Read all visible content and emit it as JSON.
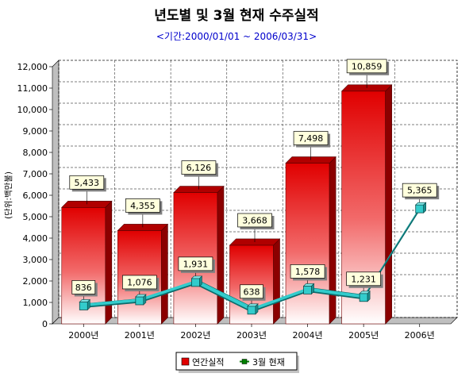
{
  "chart_data": {
    "type": "bar",
    "title": "년도별 및 3월 현재 수주실적",
    "subtitle": "<기간:2000/01/01 ~ 2006/03/31>",
    "ylabel": "(단위:백만불)",
    "xlabel": "",
    "categories": [
      "2000년",
      "2001년",
      "2002년",
      "2003년",
      "2004년",
      "2005년",
      "2006년"
    ],
    "ylim": [
      0,
      12000
    ],
    "yticks": [
      0,
      1000,
      2000,
      3000,
      4000,
      5000,
      6000,
      7000,
      8000,
      9000,
      10000,
      11000,
      12000
    ],
    "ytick_labels": [
      "0",
      "1,000",
      "2,000",
      "3,000",
      "4,000",
      "5,000",
      "6,000",
      "7,000",
      "8,000",
      "9,000",
      "10,000",
      "11,000",
      "12,000"
    ],
    "grid": true,
    "legend_position": "bottom-center",
    "series": [
      {
        "name": "연간실적",
        "kind": "bar",
        "color": "#e00000",
        "values": [
          5433,
          4355,
          6126,
          3668,
          7498,
          10859,
          null
        ],
        "labels": [
          "5,433",
          "4,355",
          "6,126",
          "3,668",
          "7,498",
          "10,859",
          ""
        ]
      },
      {
        "name": "3월 현재",
        "kind": "line",
        "color": "#33cccc",
        "legend_color": "#008000",
        "values": [
          836,
          1076,
          1931,
          638,
          1578,
          1231,
          5365
        ],
        "labels": [
          "836",
          "1,076",
          "1,931",
          "638",
          "1,578",
          "1,231",
          "5,365"
        ]
      }
    ]
  }
}
